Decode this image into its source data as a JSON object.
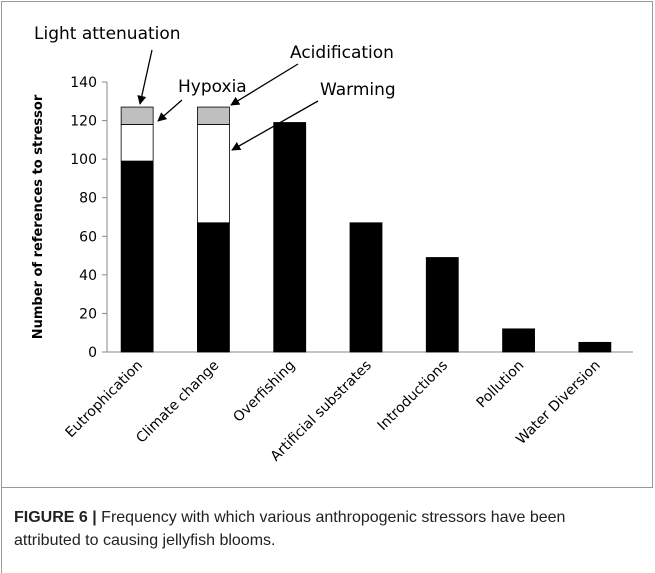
{
  "chart_data": {
    "type": "stacked_bar",
    "ylabel": "Number of references to stressor",
    "categories": [
      "Eutrophication",
      "Climate change",
      "Overfishing",
      "Artificial substrates",
      "Introductions",
      "Pollution",
      "Water Diversion"
    ],
    "series": [
      {
        "color": "#000000",
        "values": [
          99,
          67,
          119,
          67,
          49,
          12,
          5
        ]
      },
      {
        "color": "#ffffff",
        "values": [
          19,
          51,
          null,
          null,
          null,
          null,
          null
        ]
      },
      {
        "color": "#bfbfbf",
        "values": [
          9,
          9,
          null,
          null,
          null,
          null,
          null
        ]
      }
    ],
    "ylim": [
      0,
      140
    ],
    "yticks": [
      0,
      20,
      40,
      60,
      80,
      100,
      120,
      140
    ],
    "annotations": [
      "Light attenuation",
      "Hypoxia",
      "Acidification",
      "Warming"
    ]
  },
  "caption": {
    "label": "FIGURE 6 |",
    "lines": [
      "Frequency with which various anthropogenic stressors have been",
      "attributed to causing jellyfish blooms."
    ]
  }
}
